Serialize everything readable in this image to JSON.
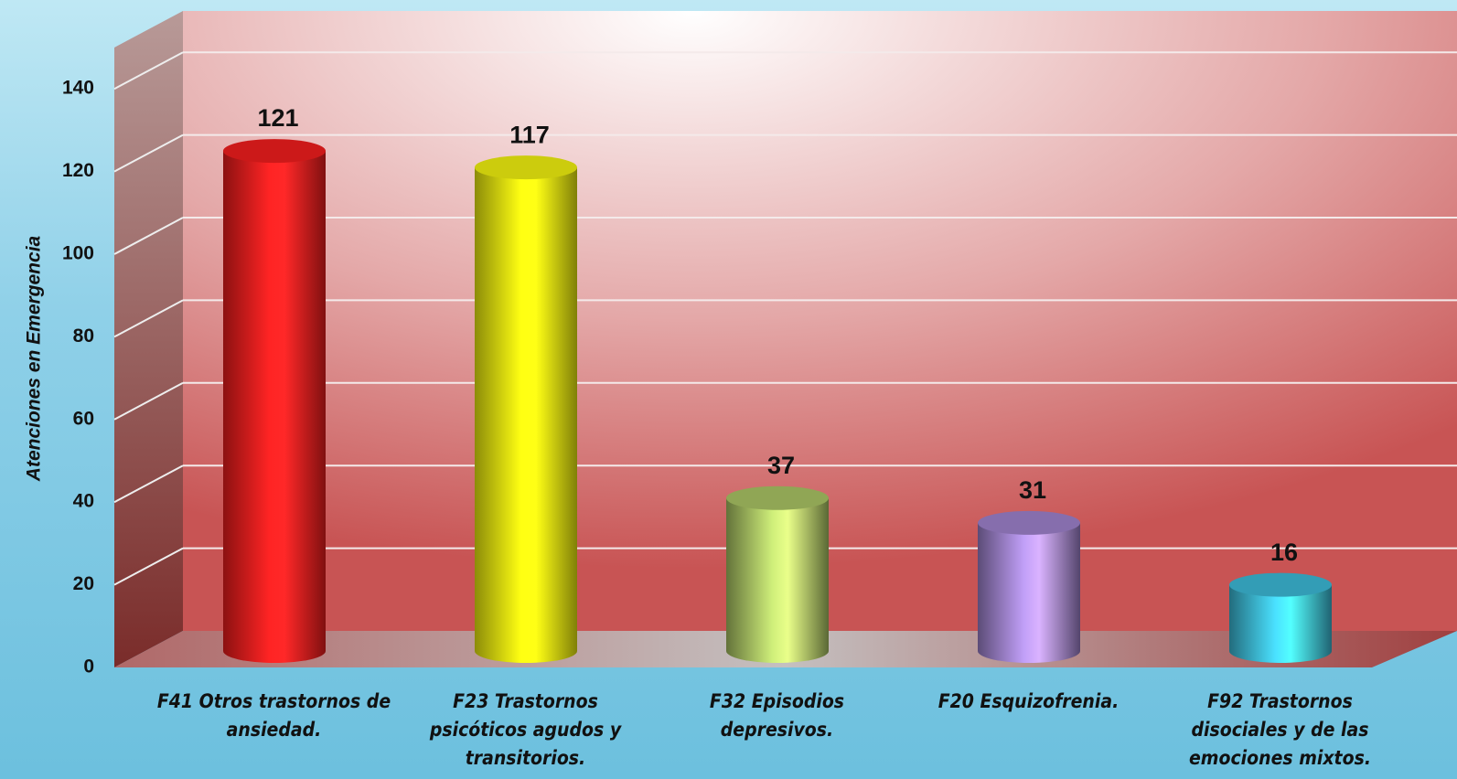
{
  "chart_data": {
    "type": "bar3d",
    "y_label": "Atenciones en Emergencia",
    "categories": [
      "F41 Otros trastornos de ansiedad.",
      "F23 Trastornos psicóticos agudos y transitorios.",
      "F32 Episodios depresivos.",
      "F20 Esquizofrenia.",
      "F92 Trastornos disociales y de las emociones mixtos."
    ],
    "values": [
      121,
      117,
      37,
      31,
      16
    ],
    "colors": [
      "#ff1f1f",
      "#ffff10",
      "#b4d06a",
      "#a88ad8",
      "#40c4e4"
    ],
    "ylim": [
      0,
      150
    ],
    "yticks": [
      0,
      20,
      40,
      60,
      80,
      100,
      120,
      140
    ],
    "grid": true
  }
}
